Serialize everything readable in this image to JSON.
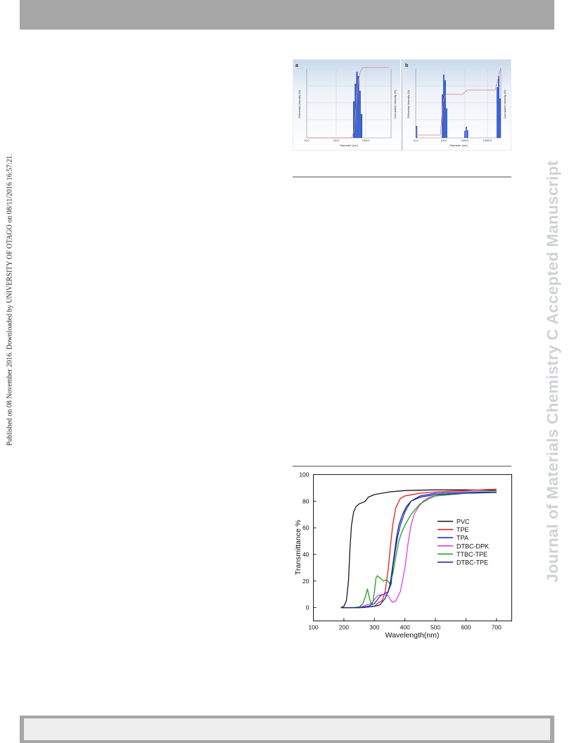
{
  "side_note": "Published on 08 November 2016. Downloaded by UNIVERSITY OF OTAGO on 08/11/2016 16:57:21.",
  "watermark": "Journal of Materials Chemistry C Accepted Manuscript",
  "dls_figure": {
    "panels": [
      {
        "label": "a",
        "xlabel": "Diameter (nm)",
        "ylabel_left": "Differential Intensity (%)",
        "ylabel_right": "Cumulative Intensity (%)",
        "x_ticks": [
          "10.0",
          "100.0",
          "1000.0"
        ]
      },
      {
        "label": "b",
        "xlabel": "Diameter (nm)",
        "ylabel_left": "Differential Intensity (%)",
        "ylabel_right": "Cumulative Intensity (%)",
        "x_ticks": [
          "10.0",
          "100.0",
          "1000.0",
          "10000.0"
        ]
      }
    ]
  },
  "chart_data": {
    "type": "line",
    "xlabel": "Wavelength(nm)",
    "ylabel": "Transmittance %",
    "xlim": [
      100,
      750
    ],
    "ylim": [
      -10,
      100
    ],
    "x_ticks": [
      "100",
      "200",
      "300",
      "400",
      "500",
      "600",
      "700"
    ],
    "y_ticks": [
      "0",
      "20",
      "40",
      "60",
      "80",
      "100"
    ],
    "legend_position": "right",
    "series": [
      {
        "name": "PVC",
        "color": "#1a1a1a",
        "points": [
          [
            190,
            0
          ],
          [
            200,
            1
          ],
          [
            208,
            5
          ],
          [
            215,
            20
          ],
          [
            220,
            45
          ],
          [
            225,
            62
          ],
          [
            232,
            72
          ],
          [
            240,
            76
          ],
          [
            250,
            78
          ],
          [
            262,
            79
          ],
          [
            270,
            80
          ],
          [
            280,
            83
          ],
          [
            300,
            85
          ],
          [
            350,
            87
          ],
          [
            400,
            88
          ],
          [
            500,
            88.5
          ],
          [
            600,
            88.5
          ],
          [
            700,
            88
          ]
        ]
      },
      {
        "name": "TPE",
        "color": "#e02020",
        "points": [
          [
            190,
            0
          ],
          [
            250,
            0
          ],
          [
            280,
            0.5
          ],
          [
            300,
            1
          ],
          [
            315,
            4
          ],
          [
            325,
            5
          ],
          [
            335,
            12
          ],
          [
            345,
            28
          ],
          [
            352,
            45
          ],
          [
            360,
            62
          ],
          [
            370,
            75
          ],
          [
            385,
            82
          ],
          [
            400,
            84
          ],
          [
            450,
            86
          ],
          [
            500,
            87
          ],
          [
            600,
            88
          ],
          [
            700,
            89
          ]
        ]
      },
      {
        "name": "TPA",
        "color": "#2030d0",
        "points": [
          [
            190,
            0
          ],
          [
            250,
            0
          ],
          [
            280,
            1
          ],
          [
            300,
            3
          ],
          [
            320,
            9
          ],
          [
            330,
            10
          ],
          [
            345,
            12
          ],
          [
            355,
            18
          ],
          [
            360,
            30
          ],
          [
            368,
            42
          ],
          [
            375,
            52
          ],
          [
            385,
            62
          ],
          [
            400,
            72
          ],
          [
            420,
            80
          ],
          [
            450,
            84
          ],
          [
            500,
            86
          ],
          [
            600,
            87
          ],
          [
            700,
            87
          ]
        ]
      },
      {
        "name": "DTBC-DPK",
        "color": "#e040e0",
        "points": [
          [
            190,
            0
          ],
          [
            240,
            0
          ],
          [
            260,
            1
          ],
          [
            275,
            2
          ],
          [
            290,
            3
          ],
          [
            300,
            6
          ],
          [
            310,
            9
          ],
          [
            325,
            10
          ],
          [
            345,
            9
          ],
          [
            355,
            5
          ],
          [
            360,
            4
          ],
          [
            370,
            5
          ],
          [
            385,
            12
          ],
          [
            400,
            30
          ],
          [
            410,
            48
          ],
          [
            420,
            62
          ],
          [
            430,
            70
          ],
          [
            445,
            76
          ],
          [
            460,
            80
          ],
          [
            480,
            83
          ],
          [
            500,
            84
          ],
          [
            600,
            86
          ],
          [
            700,
            87
          ]
        ]
      },
      {
        "name": "TTBC-TPE",
        "color": "#20a020",
        "points": [
          [
            190,
            0
          ],
          [
            230,
            0
          ],
          [
            250,
            0.5
          ],
          [
            262,
            3
          ],
          [
            270,
            8
          ],
          [
            277,
            14
          ],
          [
            285,
            6
          ],
          [
            290,
            2
          ],
          [
            295,
            4
          ],
          [
            300,
            12
          ],
          [
            305,
            22
          ],
          [
            310,
            24
          ],
          [
            320,
            22
          ],
          [
            330,
            20
          ],
          [
            340,
            21
          ],
          [
            350,
            18
          ],
          [
            360,
            25
          ],
          [
            370,
            38
          ],
          [
            380,
            50
          ],
          [
            390,
            57
          ],
          [
            400,
            62
          ],
          [
            420,
            70
          ],
          [
            450,
            78
          ],
          [
            480,
            82
          ],
          [
            500,
            84
          ],
          [
            600,
            86
          ],
          [
            700,
            87
          ]
        ]
      },
      {
        "name": "DTBC-TPE",
        "color": "#1a237e",
        "points": [
          [
            190,
            0
          ],
          [
            260,
            0
          ],
          [
            280,
            0.5
          ],
          [
            300,
            1
          ],
          [
            318,
            2
          ],
          [
            325,
            4
          ],
          [
            335,
            7
          ],
          [
            345,
            12
          ],
          [
            352,
            18
          ],
          [
            358,
            28
          ],
          [
            365,
            40
          ],
          [
            372,
            52
          ],
          [
            380,
            62
          ],
          [
            392,
            70
          ],
          [
            405,
            76
          ],
          [
            420,
            80
          ],
          [
            450,
            83
          ],
          [
            500,
            85
          ],
          [
            600,
            86
          ],
          [
            700,
            86.5
          ]
        ]
      }
    ]
  }
}
